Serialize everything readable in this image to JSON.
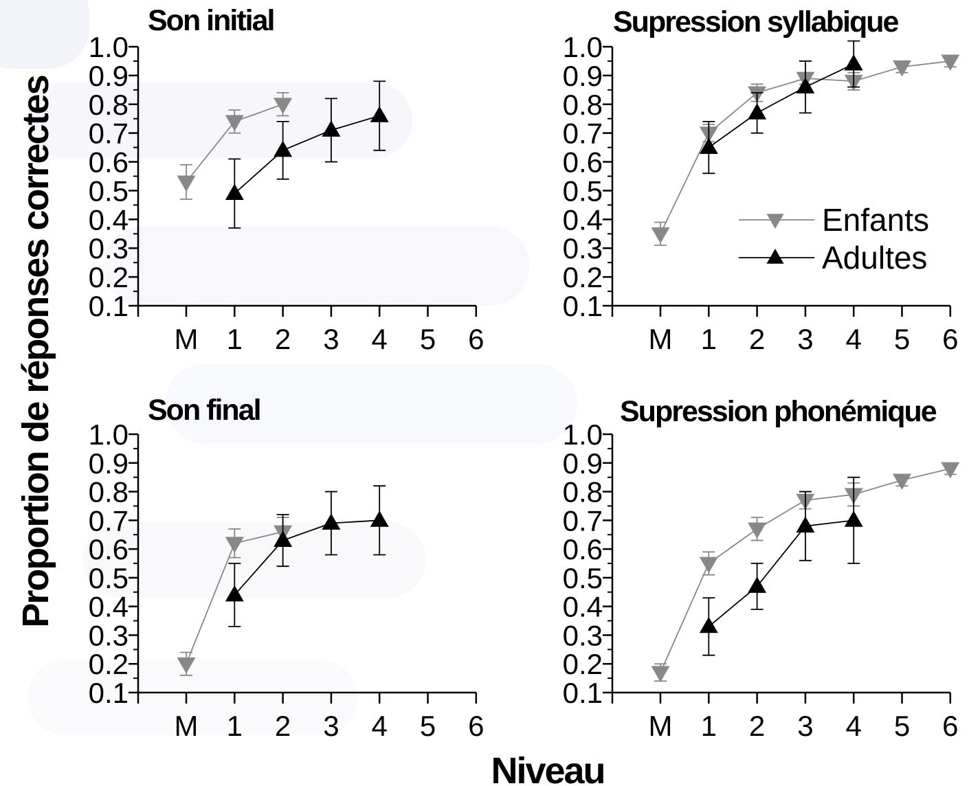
{
  "chart_data": {
    "type": "line",
    "ylabel": "Proportion de réponses correctes",
    "xlabel": "Niveau",
    "x_categories": [
      "M",
      "1",
      "2",
      "3",
      "4",
      "5",
      "6"
    ],
    "y_ticks": [
      "0.1",
      "0.2",
      "0.3",
      "0.4",
      "0.5",
      "0.6",
      "0.7",
      "0.8",
      "0.9",
      "1.0"
    ],
    "ylim": [
      0.1,
      1.0
    ],
    "legend": {
      "placement": "top-right panel, lower right",
      "entries": [
        {
          "key": "enfants",
          "label": "Enfants",
          "color": "#888888",
          "marker": "triangle-down"
        },
        {
          "key": "adultes",
          "label": "Adultes",
          "color": "#000000",
          "marker": "triangle-up"
        }
      ]
    },
    "panels": [
      {
        "title": "Son initial",
        "series": [
          {
            "key": "enfants",
            "x": [
              "M",
              "1",
              "2"
            ],
            "y": [
              0.53,
              0.74,
              0.8
            ],
            "err": [
              0.06,
              0.04,
              0.04
            ]
          },
          {
            "key": "adultes",
            "x": [
              "1",
              "2",
              "3",
              "4"
            ],
            "y": [
              0.49,
              0.64,
              0.71,
              0.76
            ],
            "err": [
              0.12,
              0.1,
              0.11,
              0.12
            ]
          }
        ]
      },
      {
        "title": "Supression syllabique",
        "series": [
          {
            "key": "enfants",
            "x": [
              "M",
              "1",
              "2",
              "3",
              "4",
              "5",
              "6"
            ],
            "y": [
              0.35,
              0.7,
              0.84,
              0.89,
              0.88,
              0.93,
              0.95
            ],
            "err": [
              0.04,
              0.03,
              0.03,
              0.02,
              0.03,
              0.02,
              0.02
            ]
          },
          {
            "key": "adultes",
            "x": [
              "1",
              "2",
              "3",
              "4"
            ],
            "y": [
              0.65,
              0.77,
              0.86,
              0.94
            ],
            "err": [
              0.09,
              0.07,
              0.09,
              0.08
            ]
          }
        ]
      },
      {
        "title": "Son final",
        "series": [
          {
            "key": "enfants",
            "x": [
              "M",
              "1",
              "2"
            ],
            "y": [
              0.2,
              0.62,
              0.66
            ],
            "err": [
              0.04,
              0.05,
              0.05
            ]
          },
          {
            "key": "adultes",
            "x": [
              "1",
              "2",
              "3",
              "4"
            ],
            "y": [
              0.44,
              0.63,
              0.69,
              0.7
            ],
            "err": [
              0.11,
              0.09,
              0.11,
              0.12
            ]
          }
        ]
      },
      {
        "title": "Supression phonémique",
        "series": [
          {
            "key": "enfants",
            "x": [
              "M",
              "1",
              "2",
              "3",
              "4",
              "5",
              "6"
            ],
            "y": [
              0.17,
              0.55,
              0.67,
              0.77,
              0.79,
              0.84,
              0.88
            ],
            "err": [
              0.03,
              0.04,
              0.04,
              0.03,
              0.04,
              0.02,
              0.02
            ]
          },
          {
            "key": "adultes",
            "x": [
              "1",
              "2",
              "3",
              "4"
            ],
            "y": [
              0.33,
              0.47,
              0.68,
              0.7
            ],
            "err": [
              0.1,
              0.08,
              0.12,
              0.15
            ]
          }
        ]
      }
    ]
  }
}
